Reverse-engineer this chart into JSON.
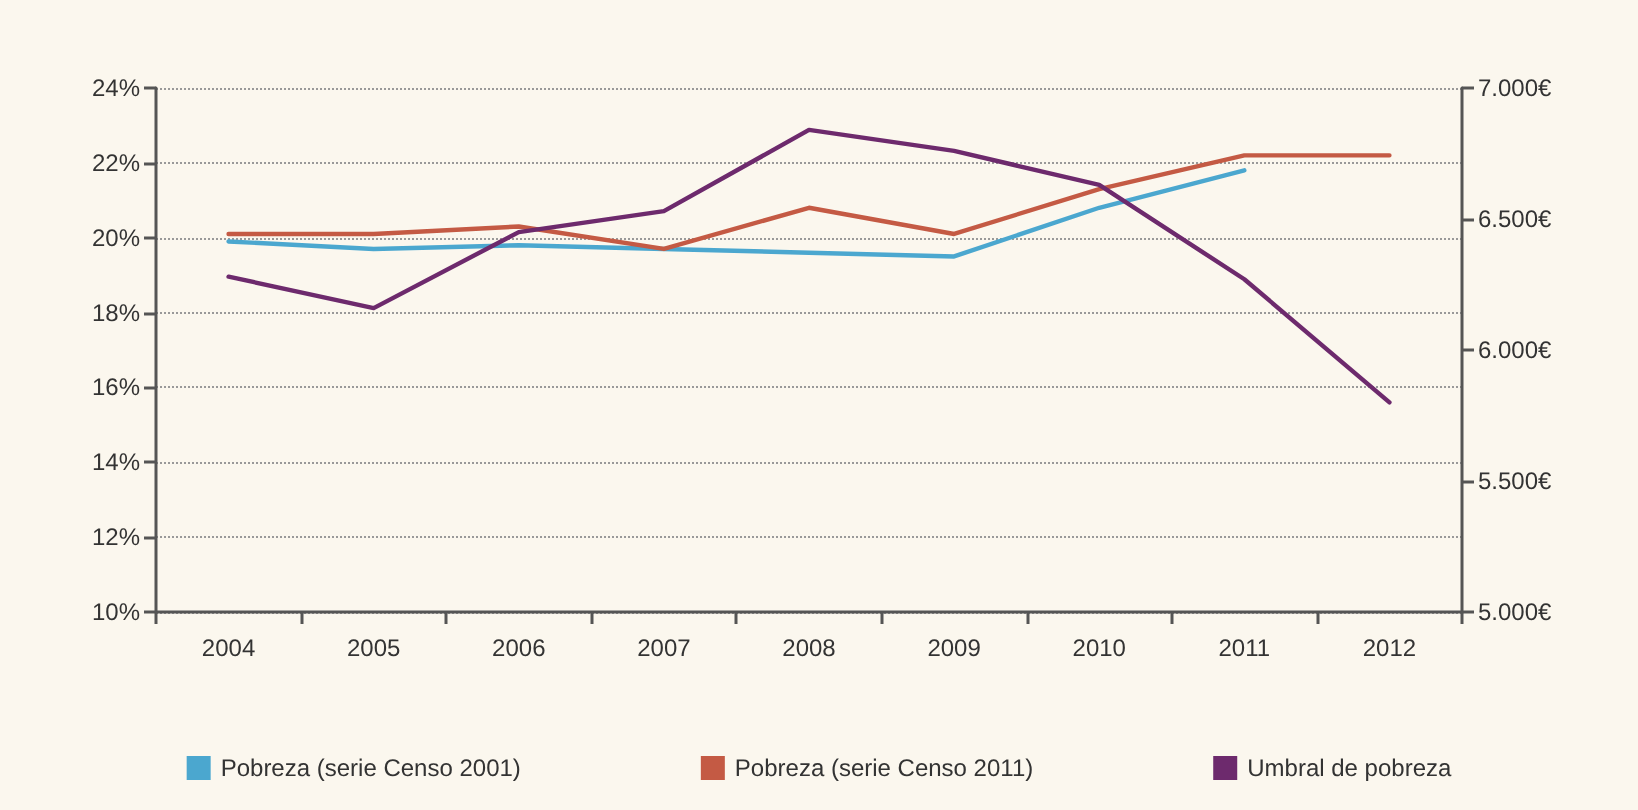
{
  "chart_data": {
    "type": "line",
    "categories": [
      "2004",
      "2005",
      "2006",
      "2007",
      "2008",
      "2009",
      "2010",
      "2011",
      "2012"
    ],
    "series": [
      {
        "name": "Pobreza (serie Censo 2001)",
        "color": "#4ba7cf",
        "values": [
          19.9,
          19.7,
          19.8,
          19.7,
          19.6,
          19.5,
          20.8,
          21.8,
          null
        ]
      },
      {
        "name": "Pobreza (serie Censo 2011)",
        "color": "#c45a44",
        "values": [
          20.1,
          20.1,
          20.3,
          19.7,
          20.8,
          20.1,
          21.3,
          22.2,
          22.2
        ]
      },
      {
        "name": "Umbral de pobreza",
        "color": "#6d2a6d",
        "axis": "y2",
        "values": [
          6280,
          6160,
          6450,
          6530,
          6840,
          6760,
          6630,
          6270,
          5800
        ]
      }
    ],
    "ylim": [
      10,
      24
    ],
    "yticks": [
      {
        "value": 10,
        "label": "10%"
      },
      {
        "value": 12,
        "label": "12%"
      },
      {
        "value": 14,
        "label": "14%"
      },
      {
        "value": 16,
        "label": "16%"
      },
      {
        "value": 18,
        "label": "18%"
      },
      {
        "value": 20,
        "label": "20%"
      },
      {
        "value": 22,
        "label": "22%"
      },
      {
        "value": 24,
        "label": "24%"
      }
    ],
    "y2lim": [
      5000,
      7000
    ],
    "y2ticks": [
      {
        "value": 5000,
        "label": "5.000€"
      },
      {
        "value": 5500,
        "label": "5.500€"
      },
      {
        "value": 6000,
        "label": "6.000€"
      },
      {
        "value": 6500,
        "label": "6.500€"
      },
      {
        "value": 7000,
        "label": "7.000€"
      }
    ],
    "grid": "y",
    "legend": "bottom",
    "marker": "none",
    "line_style": "solid"
  }
}
